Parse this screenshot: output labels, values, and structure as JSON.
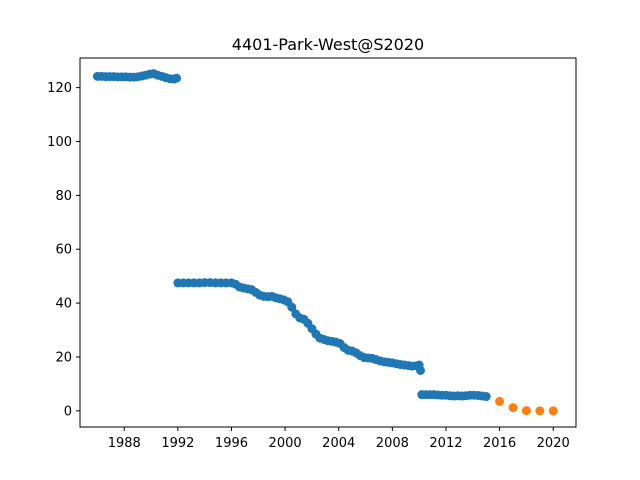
{
  "chart_data": {
    "type": "scatter",
    "title": "4401-Park-West@S2020",
    "xlabel": "",
    "ylabel": "",
    "xlim": [
      1984.7,
      2021.7
    ],
    "ylim": [
      -6,
      131
    ],
    "xticks": [
      1988,
      1992,
      1996,
      2000,
      2004,
      2008,
      2012,
      2016,
      2020
    ],
    "yticks": [
      0,
      20,
      40,
      60,
      80,
      100,
      120
    ],
    "grid": false,
    "legend": "none",
    "series": [
      {
        "color": "#1f77b4",
        "points": [
          [
            1986.0,
            124.2
          ],
          [
            1986.3,
            124.2
          ],
          [
            1986.6,
            124.1
          ],
          [
            1986.9,
            124.1
          ],
          [
            1987.2,
            124.1
          ],
          [
            1987.5,
            124.0
          ],
          [
            1987.8,
            124.0
          ],
          [
            1988.1,
            124.0
          ],
          [
            1988.4,
            123.9
          ],
          [
            1988.7,
            123.9
          ],
          [
            1989.0,
            124.0
          ],
          [
            1989.3,
            124.3
          ],
          [
            1989.6,
            124.6
          ],
          [
            1989.9,
            125.0
          ],
          [
            1990.2,
            125.2
          ],
          [
            1990.5,
            124.6
          ],
          [
            1990.8,
            124.2
          ],
          [
            1991.1,
            123.7
          ],
          [
            1991.4,
            123.3
          ],
          [
            1991.7,
            123.2
          ],
          [
            1991.9,
            123.5
          ],
          [
            1992.0,
            47.5
          ],
          [
            1992.4,
            47.5
          ],
          [
            1992.8,
            47.5
          ],
          [
            1993.2,
            47.5
          ],
          [
            1993.6,
            47.5
          ],
          [
            1994.0,
            47.6
          ],
          [
            1994.4,
            47.6
          ],
          [
            1994.8,
            47.5
          ],
          [
            1995.2,
            47.5
          ],
          [
            1995.6,
            47.5
          ],
          [
            1996.0,
            47.5
          ],
          [
            1996.3,
            47.0
          ],
          [
            1996.6,
            46.0
          ],
          [
            1996.9,
            45.6
          ],
          [
            1997.2,
            45.3
          ],
          [
            1997.5,
            45.0
          ],
          [
            1997.8,
            44.0
          ],
          [
            1998.1,
            43.0
          ],
          [
            1998.4,
            42.5
          ],
          [
            1998.7,
            42.4
          ],
          [
            1999.0,
            42.5
          ],
          [
            1999.3,
            42.0
          ],
          [
            1999.6,
            41.6
          ],
          [
            1999.9,
            41.2
          ],
          [
            2000.2,
            40.5
          ],
          [
            2000.5,
            38.5
          ],
          [
            2000.8,
            36.0
          ],
          [
            2001.1,
            34.5
          ],
          [
            2001.4,
            34.0
          ],
          [
            2001.7,
            32.5
          ],
          [
            2002.0,
            30.5
          ],
          [
            2002.3,
            28.5
          ],
          [
            2002.6,
            27.0
          ],
          [
            2002.9,
            26.5
          ],
          [
            2003.2,
            26.0
          ],
          [
            2003.5,
            25.8
          ],
          [
            2003.8,
            25.5
          ],
          [
            2004.1,
            25.0
          ],
          [
            2004.4,
            23.5
          ],
          [
            2004.7,
            22.5
          ],
          [
            2005.0,
            22.2
          ],
          [
            2005.3,
            21.5
          ],
          [
            2005.6,
            20.5
          ],
          [
            2005.9,
            19.8
          ],
          [
            2006.2,
            19.6
          ],
          [
            2006.5,
            19.5
          ],
          [
            2006.8,
            19.0
          ],
          [
            2007.1,
            18.5
          ],
          [
            2007.4,
            18.2
          ],
          [
            2007.7,
            18.0
          ],
          [
            2008.0,
            17.8
          ],
          [
            2008.3,
            17.5
          ],
          [
            2008.6,
            17.2
          ],
          [
            2008.9,
            17.0
          ],
          [
            2009.2,
            16.8
          ],
          [
            2009.5,
            16.6
          ],
          [
            2009.8,
            16.7
          ],
          [
            2010.0,
            17.0
          ],
          [
            2010.1,
            15.0
          ],
          [
            2010.2,
            6.0
          ],
          [
            2010.5,
            6.0
          ],
          [
            2010.8,
            6.0
          ],
          [
            2011.1,
            6.0
          ],
          [
            2011.4,
            5.9
          ],
          [
            2011.7,
            5.8
          ],
          [
            2012.0,
            5.8
          ],
          [
            2012.3,
            5.6
          ],
          [
            2012.6,
            5.5
          ],
          [
            2012.9,
            5.6
          ],
          [
            2013.2,
            5.5
          ],
          [
            2013.5,
            5.6
          ],
          [
            2013.8,
            5.8
          ],
          [
            2014.1,
            5.8
          ],
          [
            2014.4,
            5.7
          ],
          [
            2014.7,
            5.5
          ],
          [
            2015.0,
            5.3
          ]
        ]
      },
      {
        "color": "#ff7f0e",
        "points": [
          [
            2016,
            3.5
          ],
          [
            2017,
            1.2
          ],
          [
            2018,
            0.1
          ],
          [
            2019,
            0.0
          ],
          [
            2020,
            0.0
          ]
        ]
      }
    ]
  }
}
